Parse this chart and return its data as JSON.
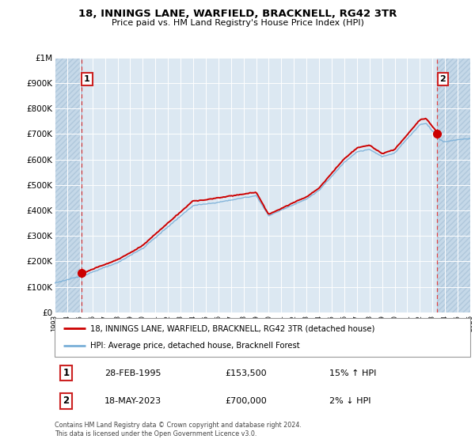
{
  "title": "18, INNINGS LANE, WARFIELD, BRACKNELL, RG42 3TR",
  "subtitle": "Price paid vs. HM Land Registry's House Price Index (HPI)",
  "legend_label1": "18, INNINGS LANE, WARFIELD, BRACKNELL, RG42 3TR (detached house)",
  "legend_label2": "HPI: Average price, detached house, Bracknell Forest",
  "transaction1_date": "28-FEB-1995",
  "transaction1_price": 153500,
  "transaction1_hpi": "15% ↑ HPI",
  "transaction2_date": "18-MAY-2023",
  "transaction2_price": 700000,
  "transaction2_hpi": "2% ↓ HPI",
  "footnote": "Contains HM Land Registry data © Crown copyright and database right 2024.\nThis data is licensed under the Open Government Licence v3.0.",
  "line1_color": "#cc0000",
  "line2_color": "#7bb0d8",
  "marker_color": "#cc0000",
  "dashed_line_color": "#dd4444",
  "background_plot": "#dce8f2",
  "hatch_color": "#c5d8e8",
  "ylim": [
    0,
    1000000
  ],
  "ylabel_ticks": [
    0,
    100000,
    200000,
    300000,
    400000,
    500000,
    600000,
    700000,
    800000,
    900000,
    1000000
  ],
  "x_start_year": 1993,
  "x_end_year": 2026,
  "t1_year": 1995.125,
  "t2_year": 2023.375
}
